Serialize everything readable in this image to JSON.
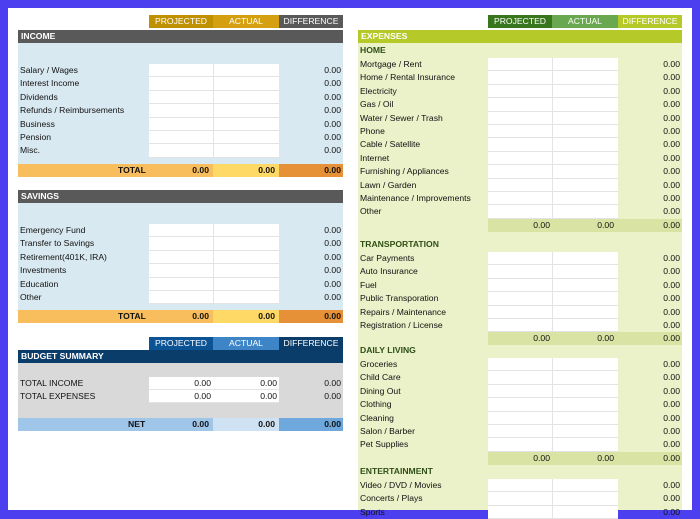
{
  "colors": {
    "income_bg": "#d9e9f1",
    "income_header": "#595959",
    "total_orange": "#f8bd5c",
    "total_actual": "#ffd966",
    "total_diff": "#e69138",
    "proj_gold": "#bf9000",
    "budget_blue": "#0b5394",
    "budget_actual": "#3d85c6",
    "net_bg": "#9fc5e8",
    "exp_bg": "#ebf1c9",
    "exp_header": "#b5c929",
    "exp_proj": "#38761d",
    "exp_actual": "#6aa84f",
    "exp_diff": "#b5c929",
    "exp_subtotal": "#d9e3a3"
  },
  "income_col_headers": {
    "projected": "PROJECTED",
    "actual": "ACTUAL",
    "difference": "DIFFERENCE"
  },
  "income": {
    "title": "INCOME",
    "items": [
      {
        "label": "Salary / Wages",
        "diff": "0.00"
      },
      {
        "label": "Interest Income",
        "diff": "0.00"
      },
      {
        "label": "Dividends",
        "diff": "0.00"
      },
      {
        "label": "Refunds / Reimbursements",
        "diff": "0.00"
      },
      {
        "label": "Business",
        "diff": "0.00"
      },
      {
        "label": "Pension",
        "diff": "0.00"
      },
      {
        "label": "Misc.",
        "diff": "0.00"
      }
    ],
    "total_label": "TOTAL",
    "total_projected": "0.00",
    "total_actual": "0.00",
    "total_diff": "0.00"
  },
  "savings": {
    "title": "SAVINGS",
    "items": [
      {
        "label": "Emergency Fund",
        "diff": "0.00"
      },
      {
        "label": "Transfer to Savings",
        "diff": "0.00"
      },
      {
        "label": "Retirement(401K, IRA)",
        "diff": "0.00"
      },
      {
        "label": "Investments",
        "diff": "0.00"
      },
      {
        "label": "Education",
        "diff": "0.00"
      },
      {
        "label": "Other",
        "diff": "0.00"
      }
    ],
    "total_label": "TOTAL",
    "total_projected": "0.00",
    "total_actual": "0.00",
    "total_diff": "0.00"
  },
  "budget": {
    "col_projected": "PROJECTED",
    "col_actual": "ACTUAL",
    "col_difference": "DIFFERENCE",
    "title": "BUDGET SUMMARY",
    "total_income_label": "TOTAL INCOME",
    "total_income_projected": "0.00",
    "total_income_actual": "0.00",
    "total_income_diff": "0.00",
    "total_expenses_label": "TOTAL EXPENSES",
    "total_expenses_projected": "0.00",
    "total_expenses_actual": "0.00",
    "total_expenses_diff": "0.00",
    "net_label": "NET",
    "net_projected": "0.00",
    "net_actual": "0.00",
    "net_diff": "0.00"
  },
  "exp_col_headers": {
    "projected": "PROJECTED",
    "actual": "ACTUAL",
    "difference": "DIFFERENCE"
  },
  "expenses": {
    "title": "EXPENSES",
    "home": {
      "title": "HOME",
      "items": [
        "Mortgage / Rent",
        "Home / Rental Insurance",
        "Electricity",
        "Gas / Oil",
        "Water / Sewer / Trash",
        "Phone",
        "Cable / Satellite",
        "Internet",
        "Furnishing / Appliances",
        "Lawn / Garden",
        "Maintenance / Improvements",
        "Other"
      ],
      "diff": "0.00",
      "sub_projected": "0.00",
      "sub_actual": "0.00",
      "sub_diff": "0.00"
    },
    "transportation": {
      "title": "TRANSPORTATION",
      "items": [
        "Car Payments",
        "Auto Insurance",
        "Fuel",
        "Public Transporation",
        "Repairs / Maintenance",
        "Registration / License"
      ],
      "diff": "0.00",
      "sub_projected": "0.00",
      "sub_actual": "0.00",
      "sub_diff": "0.00"
    },
    "daily": {
      "title": "DAILY LIVING",
      "items": [
        "Groceries",
        "Child Care",
        "Dining Out",
        "Clothing",
        "Cleaning",
        "Salon / Barber",
        "Pet Supplies"
      ],
      "diff": "0.00",
      "sub_projected": "0.00",
      "sub_actual": "0.00",
      "sub_diff": "0.00"
    },
    "entertainment": {
      "title": "ENTERTAINMENT",
      "items": [
        "Video / DVD / Movies",
        "Concerts / Plays",
        "Sports"
      ],
      "diff": "0.00"
    }
  }
}
